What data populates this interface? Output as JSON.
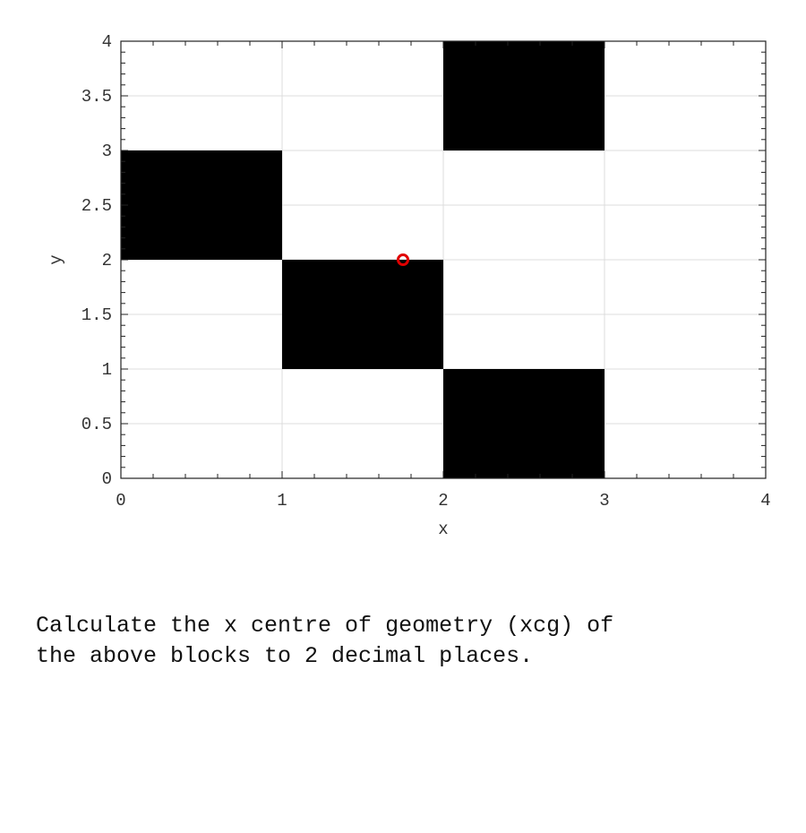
{
  "chart_data": {
    "type": "heatmap",
    "xlabel": "x",
    "ylabel": "y",
    "xlim": [
      0,
      4
    ],
    "ylim": [
      0,
      4
    ],
    "xticks": [
      "0",
      "1",
      "2",
      "3",
      "4"
    ],
    "yticks": [
      "0",
      "0.5",
      "1",
      "1.5",
      "2",
      "2.5",
      "3",
      "3.5",
      "4"
    ],
    "grid": true,
    "blocks": [
      {
        "x": [
          0,
          1
        ],
        "y": [
          2,
          3
        ]
      },
      {
        "x": [
          1,
          2
        ],
        "y": [
          1,
          2
        ]
      },
      {
        "x": [
          2,
          3
        ],
        "y": [
          3,
          4
        ]
      },
      {
        "x": [
          2,
          3
        ],
        "y": [
          0,
          1
        ]
      }
    ],
    "block_color": "#000000",
    "marker": {
      "x": 1.75,
      "y": 2,
      "shape": "circle",
      "color": "#e00000"
    }
  },
  "question": "Calculate the x centre of geometry (xcg) of\nthe above blocks to 2 decimal places."
}
